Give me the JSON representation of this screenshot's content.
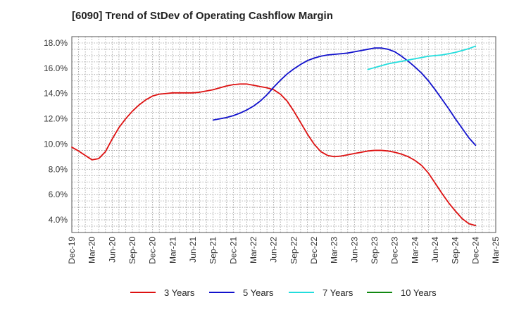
{
  "chart_data": {
    "type": "line",
    "title": "[6090]  Trend of StDev of Operating Cashflow Margin",
    "xlabel": "",
    "ylabel": "",
    "x_tick_labels": [
      "Dec-19",
      "Mar-20",
      "Jun-20",
      "Sep-20",
      "Dec-20",
      "Mar-21",
      "Jun-21",
      "Sep-21",
      "Dec-21",
      "Mar-22",
      "Jun-22",
      "Sep-22",
      "Dec-22",
      "Mar-23",
      "Jun-23",
      "Sep-23",
      "Dec-23",
      "Mar-24",
      "Jun-24",
      "Sep-24",
      "Dec-24",
      "Mar-25"
    ],
    "y_tick_labels": [
      "4.0%",
      "6.0%",
      "8.0%",
      "10.0%",
      "12.0%",
      "14.0%",
      "16.0%",
      "18.0%"
    ],
    "ylim": [
      3.0,
      18.5
    ],
    "grid": true,
    "legend_position": "bottom",
    "series": [
      {
        "name": "3 Years",
        "color": "#dd1111",
        "points": [
          [
            "Dec-19",
            9.75
          ],
          [
            "Jan-20",
            9.45
          ],
          [
            "Feb-20",
            9.1
          ],
          [
            "Mar-20",
            8.75
          ],
          [
            "Apr-20",
            8.85
          ],
          [
            "May-20",
            9.4
          ],
          [
            "Jun-20",
            10.4
          ],
          [
            "Jul-20",
            11.3
          ],
          [
            "Aug-20",
            12.0
          ],
          [
            "Sep-20",
            12.6
          ],
          [
            "Oct-20",
            13.1
          ],
          [
            "Nov-20",
            13.5
          ],
          [
            "Dec-20",
            13.8
          ],
          [
            "Jan-21",
            13.95
          ],
          [
            "Feb-21",
            14.0
          ],
          [
            "Mar-21",
            14.05
          ],
          [
            "Apr-21",
            14.05
          ],
          [
            "May-21",
            14.05
          ],
          [
            "Jun-21",
            14.05
          ],
          [
            "Jul-21",
            14.1
          ],
          [
            "Aug-21",
            14.2
          ],
          [
            "Sep-21",
            14.3
          ],
          [
            "Oct-21",
            14.45
          ],
          [
            "Nov-21",
            14.6
          ],
          [
            "Dec-21",
            14.7
          ],
          [
            "Jan-22",
            14.75
          ],
          [
            "Feb-22",
            14.75
          ],
          [
            "Mar-22",
            14.65
          ],
          [
            "Apr-22",
            14.55
          ],
          [
            "May-22",
            14.45
          ],
          [
            "Jun-22",
            14.3
          ],
          [
            "Jul-22",
            13.95
          ],
          [
            "Aug-22",
            13.4
          ],
          [
            "Sep-22",
            12.6
          ],
          [
            "Oct-22",
            11.7
          ],
          [
            "Nov-22",
            10.8
          ],
          [
            "Dec-22",
            10.0
          ],
          [
            "Jan-23",
            9.4
          ],
          [
            "Feb-23",
            9.1
          ],
          [
            "Mar-23",
            9.0
          ],
          [
            "Apr-23",
            9.05
          ],
          [
            "May-23",
            9.15
          ],
          [
            "Jun-23",
            9.25
          ],
          [
            "Jul-23",
            9.35
          ],
          [
            "Aug-23",
            9.45
          ],
          [
            "Sep-23",
            9.5
          ],
          [
            "Oct-23",
            9.5
          ],
          [
            "Nov-23",
            9.45
          ],
          [
            "Dec-23",
            9.35
          ],
          [
            "Jan-24",
            9.2
          ],
          [
            "Feb-24",
            9.0
          ],
          [
            "Mar-24",
            8.7
          ],
          [
            "Apr-24",
            8.3
          ],
          [
            "May-24",
            7.7
          ],
          [
            "Jun-24",
            6.9
          ],
          [
            "Jul-24",
            6.1
          ],
          [
            "Aug-24",
            5.35
          ],
          [
            "Sep-24",
            4.7
          ],
          [
            "Oct-24",
            4.1
          ],
          [
            "Nov-24",
            3.7
          ],
          [
            "Dec-24",
            3.55
          ]
        ]
      },
      {
        "name": "5 Years",
        "color": "#1111cc",
        "points": [
          [
            "Sep-21",
            11.9
          ],
          [
            "Oct-21",
            12.0
          ],
          [
            "Nov-21",
            12.1
          ],
          [
            "Dec-21",
            12.25
          ],
          [
            "Jan-22",
            12.45
          ],
          [
            "Feb-22",
            12.7
          ],
          [
            "Mar-22",
            13.0
          ],
          [
            "Apr-22",
            13.4
          ],
          [
            "May-22",
            13.9
          ],
          [
            "Jun-22",
            14.5
          ],
          [
            "Jul-22",
            15.05
          ],
          [
            "Aug-22",
            15.55
          ],
          [
            "Sep-22",
            15.95
          ],
          [
            "Oct-22",
            16.3
          ],
          [
            "Nov-22",
            16.6
          ],
          [
            "Dec-22",
            16.8
          ],
          [
            "Jan-23",
            16.95
          ],
          [
            "Feb-23",
            17.05
          ],
          [
            "Mar-23",
            17.1
          ],
          [
            "Apr-23",
            17.15
          ],
          [
            "May-23",
            17.2
          ],
          [
            "Jun-23",
            17.3
          ],
          [
            "Jul-23",
            17.4
          ],
          [
            "Aug-23",
            17.5
          ],
          [
            "Sep-23",
            17.6
          ],
          [
            "Oct-23",
            17.6
          ],
          [
            "Nov-23",
            17.5
          ],
          [
            "Dec-23",
            17.3
          ],
          [
            "Jan-24",
            16.95
          ],
          [
            "Feb-24",
            16.55
          ],
          [
            "Mar-24",
            16.1
          ],
          [
            "Apr-24",
            15.6
          ],
          [
            "May-24",
            15.0
          ],
          [
            "Jun-24",
            14.3
          ],
          [
            "Jul-24",
            13.55
          ],
          [
            "Aug-24",
            12.8
          ],
          [
            "Sep-24",
            12.0
          ],
          [
            "Oct-24",
            11.25
          ],
          [
            "Nov-24",
            10.5
          ],
          [
            "Dec-24",
            9.9
          ]
        ]
      },
      {
        "name": "7 Years",
        "color": "#22dddd",
        "points": [
          [
            "Aug-23",
            15.9
          ],
          [
            "Sep-23",
            16.05
          ],
          [
            "Oct-23",
            16.2
          ],
          [
            "Nov-23",
            16.35
          ],
          [
            "Dec-23",
            16.45
          ],
          [
            "Jan-24",
            16.55
          ],
          [
            "Feb-24",
            16.65
          ],
          [
            "Mar-24",
            16.75
          ],
          [
            "Apr-24",
            16.85
          ],
          [
            "May-24",
            16.95
          ],
          [
            "Jun-24",
            17.0
          ],
          [
            "Jul-24",
            17.05
          ],
          [
            "Aug-24",
            17.15
          ],
          [
            "Sep-24",
            17.25
          ],
          [
            "Oct-24",
            17.4
          ],
          [
            "Nov-24",
            17.55
          ],
          [
            "Dec-24",
            17.75
          ]
        ]
      },
      {
        "name": "10 Years",
        "color": "#118811",
        "points": []
      }
    ]
  }
}
